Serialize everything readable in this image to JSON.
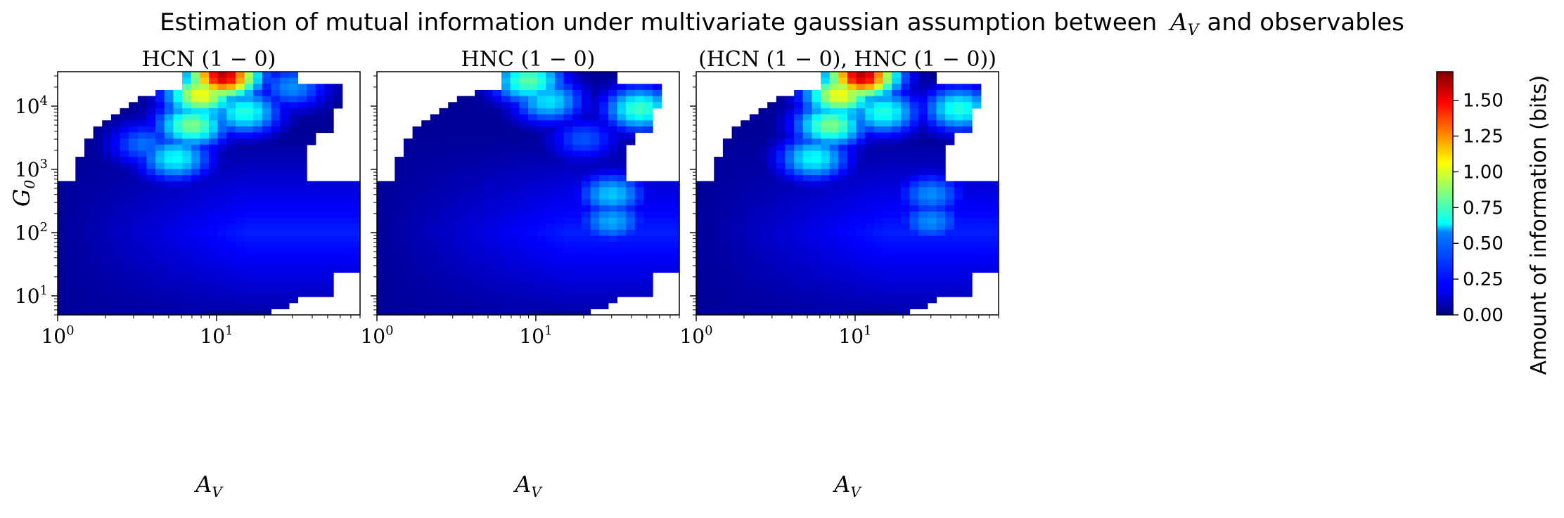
{
  "figure": {
    "title_prefix": "Estimation of mutual information under multivariate gaussian assumption between",
    "title_var": "A",
    "title_var_sub": "V",
    "title_suffix": "and observables"
  },
  "chart_data": [
    {
      "type": "heatmap",
      "title": "HCN (1 − 0)",
      "xlabel": "A",
      "xlabel_sub": "V",
      "ylabel": "G",
      "ylabel_sub": "0",
      "xscale": "log",
      "yscale": "log",
      "xlim": [
        1,
        80
      ],
      "ylim": [
        5,
        35000
      ],
      "x_ticks": [
        {
          "base": "10",
          "exp": "0"
        },
        {
          "base": "10",
          "exp": "1"
        }
      ],
      "y_ticks": [
        {
          "base": "10",
          "exp": "1"
        },
        {
          "base": "10",
          "exp": "2"
        },
        {
          "base": "10",
          "exp": "3"
        },
        {
          "base": "10",
          "exp": "4"
        }
      ],
      "grid": false,
      "hotspots": [
        {
          "x": 11,
          "y": 30000,
          "value": 1.6
        },
        {
          "x": 8,
          "y": 15000,
          "value": 1.05
        },
        {
          "x": 7,
          "y": 5000,
          "value": 0.85
        },
        {
          "x": 5.5,
          "y": 1500,
          "value": 0.65
        },
        {
          "x": 15,
          "y": 8000,
          "value": 0.7
        },
        {
          "x": 30,
          "y": 20000,
          "value": 0.45
        },
        {
          "x": 3.5,
          "y": 2500,
          "value": 0.4
        }
      ],
      "colorscale": "jet",
      "vmin": 0,
      "vmax": 1.7
    },
    {
      "type": "heatmap",
      "title": "HNC (1 − 0)",
      "xlabel": "A",
      "xlabel_sub": "V",
      "xscale": "log",
      "yscale": "log",
      "xlim": [
        1,
        80
      ],
      "ylim": [
        5,
        35000
      ],
      "x_ticks": [
        {
          "base": "10",
          "exp": "0"
        },
        {
          "base": "10",
          "exp": "1"
        }
      ],
      "grid": false,
      "hotspots": [
        {
          "x": 9,
          "y": 25000,
          "value": 0.8
        },
        {
          "x": 12,
          "y": 12000,
          "value": 0.6
        },
        {
          "x": 45,
          "y": 9000,
          "value": 0.75
        },
        {
          "x": 30,
          "y": 400,
          "value": 0.55
        },
        {
          "x": 30,
          "y": 150,
          "value": 0.5
        },
        {
          "x": 20,
          "y": 3000,
          "value": 0.35
        }
      ],
      "colorscale": "jet",
      "vmin": 0,
      "vmax": 1.7
    },
    {
      "type": "heatmap",
      "title": "(HCN (1 − 0), HNC (1 − 0))",
      "xlabel": "A",
      "xlabel_sub": "V",
      "xscale": "log",
      "yscale": "log",
      "xlim": [
        1,
        80
      ],
      "ylim": [
        5,
        35000
      ],
      "x_ticks": [
        {
          "base": "10",
          "exp": "0"
        },
        {
          "base": "10",
          "exp": "1"
        }
      ],
      "grid": false,
      "hotspots": [
        {
          "x": 11,
          "y": 30000,
          "value": 1.6
        },
        {
          "x": 8,
          "y": 15000,
          "value": 1.05
        },
        {
          "x": 7,
          "y": 5000,
          "value": 0.85
        },
        {
          "x": 5.5,
          "y": 1500,
          "value": 0.65
        },
        {
          "x": 15,
          "y": 8000,
          "value": 0.7
        },
        {
          "x": 45,
          "y": 9000,
          "value": 0.7
        },
        {
          "x": 30,
          "y": 400,
          "value": 0.45
        },
        {
          "x": 30,
          "y": 150,
          "value": 0.45
        }
      ],
      "colorscale": "jet",
      "vmin": 0,
      "vmax": 1.7
    }
  ],
  "colorbar": {
    "label": "Amount of information (bits)",
    "ticks": [
      "0.00",
      "0.25",
      "0.50",
      "0.75",
      "1.00",
      "1.25",
      "1.50"
    ],
    "tick_values": [
      0,
      0.25,
      0.5,
      0.75,
      1.0,
      1.25,
      1.5
    ],
    "vmin": 0,
    "vmax": 1.7,
    "colormap": "jet"
  }
}
